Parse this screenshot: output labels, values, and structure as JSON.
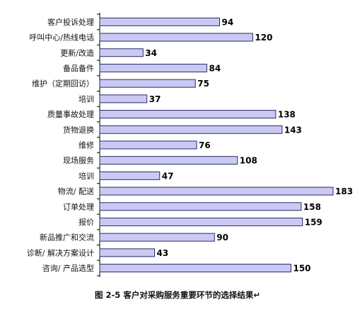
{
  "chart_data": {
    "type": "bar",
    "orientation": "horizontal",
    "categories": [
      "客户投诉处理",
      "呼叫中心/热线电话",
      "更新/改造",
      "备品备件",
      "维护（定期回访）",
      "培训",
      "质量事故处理",
      "货物退换",
      "维修",
      "现场服务",
      "培训",
      "物流/ 配送",
      "订单处理",
      "报价",
      "新品推广和交流",
      "诊断/ 解决方案设计",
      "咨询/ 产品选型"
    ],
    "values": [
      94,
      120,
      34,
      84,
      75,
      37,
      138,
      143,
      76,
      108,
      47,
      183,
      158,
      159,
      90,
      43,
      150
    ],
    "xlim": [
      0,
      183
    ],
    "grid": false,
    "bar_color": "#c9c9f3",
    "bar_edge_color": "#2a2a66"
  },
  "caption": "图 2-5  客户对采购服务重要环节的选择结果↵"
}
